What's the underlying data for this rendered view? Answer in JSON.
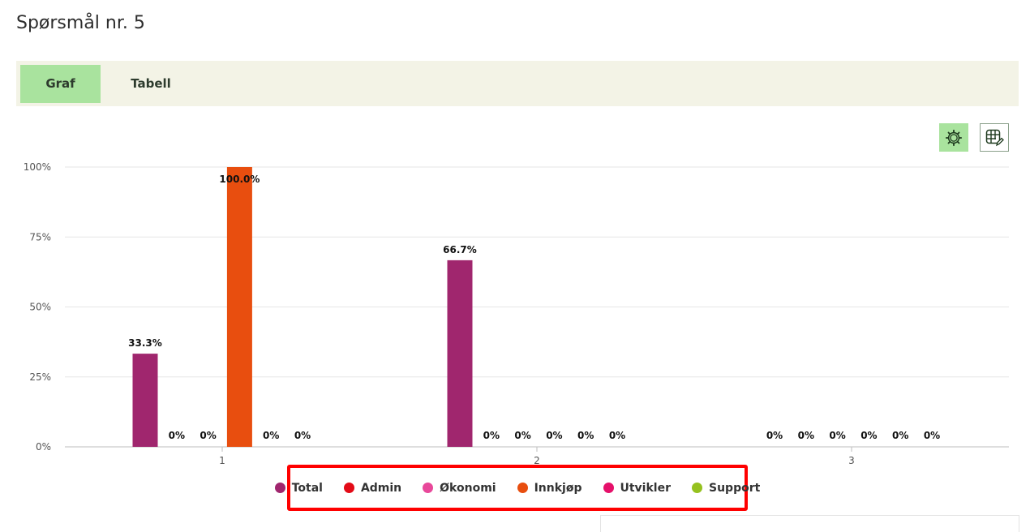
{
  "page": {
    "title": "Spørsmål nr. 5"
  },
  "tabs": [
    {
      "label": "Graf",
      "active": true
    },
    {
      "label": "Tabell",
      "active": false
    }
  ],
  "toolbar": {
    "settings_icon": "gear-icon",
    "table_icon": "table-edit-icon"
  },
  "chart_data": {
    "type": "bar",
    "categories": [
      "1",
      "2",
      "3"
    ],
    "y_ticks": [
      "0%",
      "25%",
      "50%",
      "75%",
      "100%"
    ],
    "ylim": [
      0,
      100
    ],
    "grid": true,
    "legend_position": "bottom",
    "series": [
      {
        "name": "Total",
        "color": "#a0266e",
        "values": [
          33.3,
          66.7,
          0
        ],
        "labels": [
          "33.3%",
          "66.7%",
          "0%"
        ]
      },
      {
        "name": "Admin",
        "color": "#e30b17",
        "values": [
          0,
          0,
          0
        ],
        "labels": [
          "0%",
          "0%",
          "0%"
        ]
      },
      {
        "name": "Økonomi",
        "color": "#e8489a",
        "values": [
          0,
          0,
          0
        ],
        "labels": [
          "0%",
          "0%",
          "0%"
        ]
      },
      {
        "name": "Innkjøp",
        "color": "#e84e0f",
        "values": [
          100,
          0,
          0
        ],
        "labels": [
          "100.0%",
          "0%",
          "0%"
        ]
      },
      {
        "name": "Utvikler",
        "color": "#e5106a",
        "values": [
          0,
          0,
          0
        ],
        "labels": [
          "0%",
          "0%",
          "0%"
        ]
      },
      {
        "name": "Support",
        "color": "#95c11f",
        "values": [
          0,
          0,
          0
        ],
        "labels": [
          "0%",
          "0%",
          "0%"
        ]
      }
    ]
  }
}
